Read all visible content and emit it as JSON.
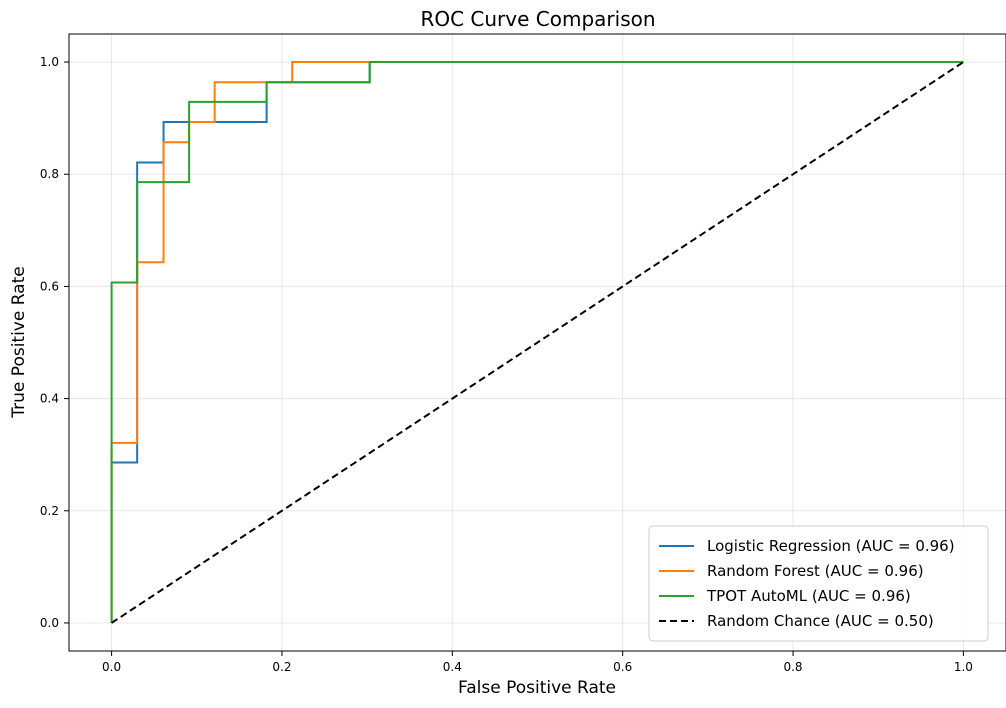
{
  "chart_data": {
    "type": "line",
    "title": "ROC Curve Comparison",
    "xlabel": "False Positive Rate",
    "ylabel": "True Positive Rate",
    "xlim": [
      -0.05,
      1.05
    ],
    "ylim": [
      -0.05,
      1.05
    ],
    "xticks": [
      "0.0",
      "0.2",
      "0.4",
      "0.6",
      "0.8",
      "1.0"
    ],
    "yticks": [
      "0.0",
      "0.2",
      "0.4",
      "0.6",
      "0.8",
      "1.0"
    ],
    "grid": true,
    "legend_position": "bottom-right",
    "series": [
      {
        "name": "Logistic Regression (AUC = 0.96)",
        "color": "#1f77b4",
        "style": "solid",
        "points": [
          [
            0.0,
            0.0
          ],
          [
            0.0,
            0.286
          ],
          [
            0.03,
            0.286
          ],
          [
            0.03,
            0.821
          ],
          [
            0.061,
            0.821
          ],
          [
            0.061,
            0.893
          ],
          [
            0.182,
            0.893
          ],
          [
            0.182,
            0.964
          ],
          [
            0.303,
            0.964
          ],
          [
            0.303,
            1.0
          ],
          [
            1.0,
            1.0
          ]
        ]
      },
      {
        "name": "Random Forest (AUC = 0.96)",
        "color": "#ff7f0e",
        "style": "solid",
        "points": [
          [
            0.0,
            0.0
          ],
          [
            0.0,
            0.321
          ],
          [
            0.03,
            0.321
          ],
          [
            0.03,
            0.643
          ],
          [
            0.061,
            0.643
          ],
          [
            0.061,
            0.857
          ],
          [
            0.091,
            0.857
          ],
          [
            0.091,
            0.893
          ],
          [
            0.121,
            0.893
          ],
          [
            0.121,
            0.964
          ],
          [
            0.212,
            0.964
          ],
          [
            0.212,
            1.0
          ],
          [
            1.0,
            1.0
          ]
        ]
      },
      {
        "name": "TPOT AutoML (AUC = 0.96)",
        "color": "#2ca02c",
        "style": "solid",
        "points": [
          [
            0.0,
            0.0
          ],
          [
            0.0,
            0.607
          ],
          [
            0.03,
            0.607
          ],
          [
            0.03,
            0.786
          ],
          [
            0.091,
            0.786
          ],
          [
            0.091,
            0.929
          ],
          [
            0.182,
            0.929
          ],
          [
            0.182,
            0.964
          ],
          [
            0.303,
            0.964
          ],
          [
            0.303,
            1.0
          ],
          [
            1.0,
            1.0
          ]
        ]
      },
      {
        "name": "Random Chance (AUC = 0.50)",
        "color": "#000000",
        "style": "dashed",
        "points": [
          [
            0.0,
            0.0
          ],
          [
            1.0,
            1.0
          ]
        ]
      }
    ]
  }
}
